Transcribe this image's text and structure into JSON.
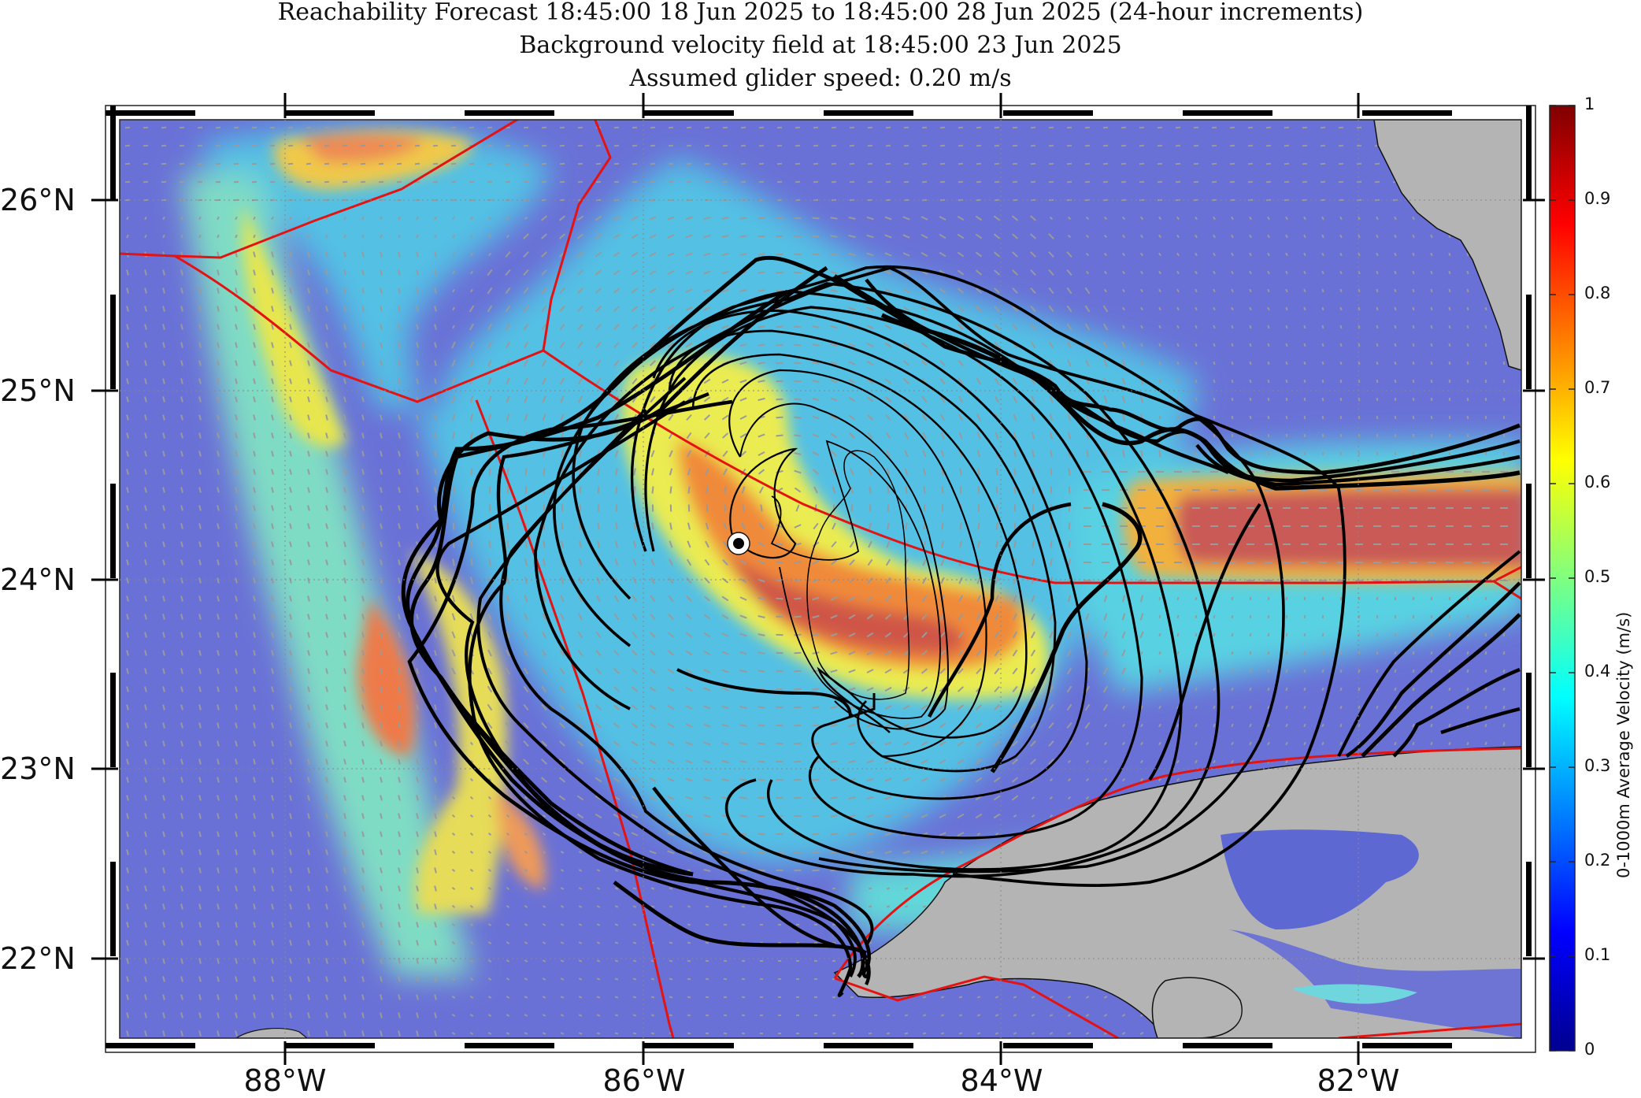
{
  "title": {
    "line1": "Reachability Forecast 18:45:00 18 Jun 2025 to 18:45:00 28 Jun 2025 (24-hour increments)",
    "line2": "Background velocity field at 18:45:00 23 Jun 2025",
    "line3": "Assumed glider speed: 0.20 m/s"
  },
  "map": {
    "lat_labels": [
      "26°N",
      "25°N",
      "24°N",
      "23°N",
      "22°N"
    ],
    "lon_labels": [
      "88°W",
      "86°W",
      "84°W",
      "82°W"
    ],
    "lon_range": [
      -89.0,
      -81.0
    ],
    "lat_range": [
      21.55,
      26.45
    ],
    "glider_start": {
      "lon": -85.45,
      "lat": 24.2
    },
    "land_color": "#b4b4b4",
    "contour_color": "#000000",
    "boundary_color": "#ee1111",
    "vector_color": "#9a9a9a"
  },
  "colorbar": {
    "label": "0-1000m Average Velocity (m/s)",
    "ticks": [
      "0",
      "0.1",
      "0.2",
      "0.3",
      "0.4",
      "0.5",
      "0.6",
      "0.7",
      "0.8",
      "0.9",
      "1"
    ],
    "range": [
      0,
      1
    ],
    "colormap": "jet"
  }
}
